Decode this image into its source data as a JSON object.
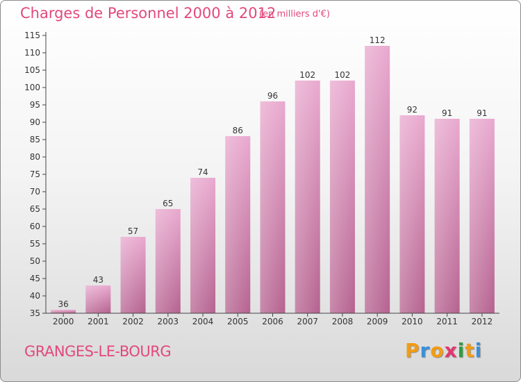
{
  "title": "Charges de Personnel 2000 à 2012",
  "subtitle": "(en milliers d'€)",
  "town": "GRANGES-LE-BOURG",
  "logo": {
    "letters": [
      "P",
      "r",
      "o",
      "x",
      "i",
      "t",
      "i"
    ],
    "colors": [
      "#f39c12",
      "#3a8fd8",
      "#f39c12",
      "#e2366e",
      "#2e9e3e",
      "#f39c12",
      "#3a8fd8"
    ]
  },
  "colors": {
    "accent": "#e2487e",
    "bar_light": "#e9a9cf",
    "bar_dark": "#b5628f"
  },
  "chart_data": {
    "type": "bar",
    "categories": [
      "2000",
      "2001",
      "2002",
      "2003",
      "2004",
      "2005",
      "2006",
      "2007",
      "2008",
      "2009",
      "2010",
      "2011",
      "2012"
    ],
    "values": [
      36,
      43,
      57,
      65,
      74,
      86,
      96,
      102,
      102,
      112,
      92,
      91,
      91
    ],
    "value_labels": [
      "36",
      "43",
      "57",
      "65",
      "74",
      "86",
      "96",
      "102",
      "102",
      "112",
      "92",
      "91",
      "91"
    ],
    "ylim": [
      35,
      115
    ],
    "yticks": [
      35,
      40,
      45,
      50,
      55,
      60,
      65,
      70,
      75,
      80,
      85,
      90,
      95,
      100,
      105,
      110,
      115
    ],
    "grid": false
  }
}
